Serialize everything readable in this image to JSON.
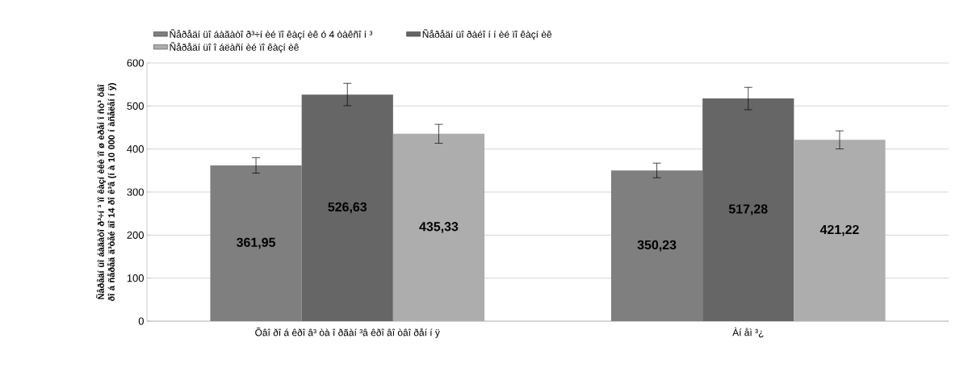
{
  "chart_data": {
    "type": "bar",
    "ylabel": "Ñåðåäí üî áàãàòî ð³÷í ³ ïî êàçí èêè ïî ø èðåí î ñò³ õâî ðî á ñåðåä ä³òåé äî 14 ðî ê³â (í à 10 000 í àñåëåí í ÿ)",
    "categories": [
      "Õâî ðî á êðî â³ òà î ðãàí ³â êðî âî òâî ðåí í ÿ",
      "Àí åì ³¿"
    ],
    "series": [
      {
        "name": "Ñåðåäí üî áàãàòî ð³÷í èé ïî êàçí èê ó 4 òàêñî í ³",
        "color": "#7f7f7f",
        "values": [
          361.95,
          350.23
        ],
        "errors": [
          18,
          17
        ],
        "value_labels": [
          "361,95",
          "350,23"
        ]
      },
      {
        "name": "Ñåðåäí üî ðàéî í í èé ïî êàçí èê",
        "color": "#666666",
        "values": [
          526.63,
          517.28
        ],
        "errors": [
          26,
          26
        ],
        "value_labels": [
          "526,63",
          "517,28"
        ]
      },
      {
        "name": "Ñåðåäí üî î áëàñí èé ïî êàçí èê",
        "color": "#adadad",
        "values": [
          435.33,
          421.22
        ],
        "errors": [
          22,
          21
        ],
        "value_labels": [
          "435,33",
          "421,22"
        ]
      }
    ],
    "ylim": [
      0,
      600
    ],
    "yticks": [
      0,
      100,
      200,
      300,
      400,
      500,
      600
    ],
    "grid": "y",
    "legend": "top left"
  }
}
